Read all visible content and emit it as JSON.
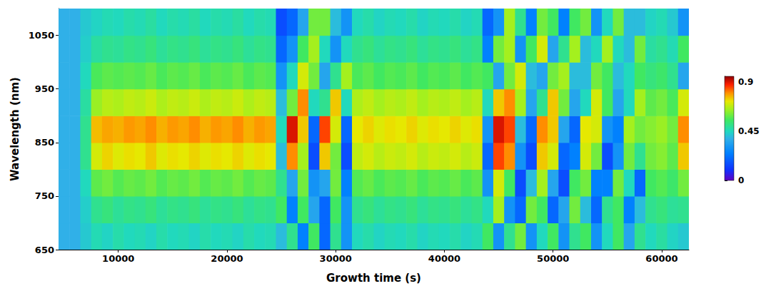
{
  "chart_data": {
    "type": "heatmap",
    "xlabel": "Growth time (s)",
    "ylabel": "Wavelength (nm)",
    "xlim": [
      4500,
      62500
    ],
    "ylim": [
      650,
      1100
    ],
    "xticks": [
      10000,
      20000,
      30000,
      40000,
      50000,
      60000
    ],
    "yticks": [
      650,
      750,
      850,
      950,
      1050
    ],
    "x": [
      5000,
      6000,
      7000,
      8000,
      9000,
      10000,
      11000,
      12000,
      13000,
      14000,
      15000,
      16000,
      17000,
      18000,
      19000,
      20000,
      21000,
      22000,
      23000,
      24000,
      25000,
      26000,
      27000,
      28000,
      29000,
      30000,
      31000,
      32000,
      33000,
      34000,
      35000,
      36000,
      37000,
      38000,
      39000,
      40000,
      41000,
      42000,
      43000,
      44000,
      45000,
      46000,
      47000,
      48000,
      49000,
      50000,
      51000,
      52000,
      53000,
      54000,
      55000,
      56000,
      57000,
      58000,
      59000,
      60000,
      61000,
      62000
    ],
    "y": [
      675,
      725,
      775,
      825,
      875,
      925,
      975,
      1025,
      1075
    ],
    "z": [
      [
        0.38,
        0.38,
        0.42,
        0.46,
        0.44,
        0.47,
        0.45,
        0.46,
        0.44,
        0.47,
        0.45,
        0.46,
        0.44,
        0.47,
        0.45,
        0.46,
        0.44,
        0.47,
        0.45,
        0.46,
        0.4,
        0.5,
        0.25,
        0.55,
        0.2,
        0.5,
        0.3,
        0.45,
        0.47,
        0.44,
        0.46,
        0.45,
        0.47,
        0.44,
        0.46,
        0.45,
        0.47,
        0.44,
        0.46,
        0.55,
        0.3,
        0.5,
        0.6,
        0.3,
        0.45,
        0.55,
        0.3,
        0.5,
        0.55,
        0.3,
        0.45,
        0.55,
        0.35,
        0.5,
        0.45,
        0.48,
        0.44,
        0.42
      ],
      [
        0.38,
        0.38,
        0.43,
        0.5,
        0.52,
        0.49,
        0.51,
        0.5,
        0.52,
        0.49,
        0.51,
        0.5,
        0.52,
        0.49,
        0.51,
        0.5,
        0.52,
        0.49,
        0.51,
        0.5,
        0.55,
        0.25,
        0.55,
        0.35,
        0.2,
        0.55,
        0.3,
        0.5,
        0.52,
        0.49,
        0.51,
        0.5,
        0.52,
        0.49,
        0.51,
        0.5,
        0.52,
        0.49,
        0.51,
        0.45,
        0.65,
        0.3,
        0.2,
        0.6,
        0.55,
        0.2,
        0.35,
        0.6,
        0.4,
        0.2,
        0.5,
        0.55,
        0.25,
        0.4,
        0.5,
        0.52,
        0.49,
        0.5
      ],
      [
        0.38,
        0.38,
        0.45,
        0.58,
        0.6,
        0.57,
        0.59,
        0.58,
        0.6,
        0.57,
        0.59,
        0.58,
        0.6,
        0.57,
        0.59,
        0.58,
        0.6,
        0.57,
        0.59,
        0.58,
        0.5,
        0.35,
        0.6,
        0.3,
        0.35,
        0.6,
        0.25,
        0.57,
        0.59,
        0.56,
        0.58,
        0.57,
        0.59,
        0.56,
        0.58,
        0.57,
        0.59,
        0.56,
        0.58,
        0.3,
        0.7,
        0.55,
        0.15,
        0.4,
        0.65,
        0.35,
        0.15,
        0.55,
        0.6,
        0.25,
        0.25,
        0.6,
        0.45,
        0.2,
        0.55,
        0.57,
        0.54,
        0.6
      ],
      [
        0.38,
        0.38,
        0.5,
        0.7,
        0.74,
        0.71,
        0.73,
        0.72,
        0.75,
        0.71,
        0.73,
        0.72,
        0.74,
        0.71,
        0.73,
        0.72,
        0.74,
        0.71,
        0.73,
        0.72,
        0.4,
        0.8,
        0.65,
        0.15,
        0.75,
        0.6,
        0.15,
        0.68,
        0.7,
        0.67,
        0.69,
        0.68,
        0.7,
        0.67,
        0.69,
        0.68,
        0.7,
        0.67,
        0.69,
        0.2,
        0.85,
        0.8,
        0.3,
        0.15,
        0.75,
        0.7,
        0.2,
        0.25,
        0.7,
        0.6,
        0.15,
        0.3,
        0.6,
        0.5,
        0.6,
        0.62,
        0.58,
        0.75
      ],
      [
        0.38,
        0.38,
        0.5,
        0.76,
        0.78,
        0.77,
        0.79,
        0.78,
        0.8,
        0.77,
        0.79,
        0.78,
        0.8,
        0.77,
        0.79,
        0.78,
        0.8,
        0.77,
        0.79,
        0.78,
        0.45,
        0.9,
        0.75,
        0.2,
        0.85,
        0.7,
        0.2,
        0.72,
        0.74,
        0.71,
        0.73,
        0.72,
        0.74,
        0.71,
        0.73,
        0.72,
        0.74,
        0.71,
        0.73,
        0.3,
        0.9,
        0.85,
        0.4,
        0.2,
        0.8,
        0.75,
        0.35,
        0.2,
        0.72,
        0.7,
        0.3,
        0.25,
        0.65,
        0.6,
        0.62,
        0.64,
        0.6,
        0.8
      ],
      [
        0.38,
        0.38,
        0.48,
        0.64,
        0.67,
        0.66,
        0.68,
        0.67,
        0.69,
        0.66,
        0.68,
        0.67,
        0.69,
        0.66,
        0.68,
        0.67,
        0.69,
        0.66,
        0.68,
        0.67,
        0.4,
        0.6,
        0.8,
        0.45,
        0.5,
        0.75,
        0.45,
        0.66,
        0.68,
        0.65,
        0.67,
        0.66,
        0.68,
        0.65,
        0.67,
        0.66,
        0.68,
        0.65,
        0.67,
        0.45,
        0.75,
        0.8,
        0.65,
        0.35,
        0.5,
        0.75,
        0.6,
        0.35,
        0.45,
        0.7,
        0.55,
        0.35,
        0.45,
        0.65,
        0.58,
        0.6,
        0.56,
        0.7
      ],
      [
        0.38,
        0.38,
        0.45,
        0.56,
        0.58,
        0.57,
        0.58,
        0.57,
        0.59,
        0.56,
        0.58,
        0.57,
        0.59,
        0.56,
        0.58,
        0.57,
        0.59,
        0.56,
        0.58,
        0.57,
        0.3,
        0.45,
        0.7,
        0.6,
        0.35,
        0.5,
        0.65,
        0.56,
        0.58,
        0.55,
        0.57,
        0.56,
        0.58,
        0.55,
        0.57,
        0.56,
        0.58,
        0.55,
        0.57,
        0.55,
        0.35,
        0.6,
        0.7,
        0.4,
        0.35,
        0.6,
        0.65,
        0.4,
        0.4,
        0.6,
        0.55,
        0.4,
        0.45,
        0.55,
        0.52,
        0.54,
        0.5,
        0.35
      ],
      [
        0.38,
        0.38,
        0.43,
        0.48,
        0.5,
        0.49,
        0.51,
        0.5,
        0.52,
        0.49,
        0.51,
        0.5,
        0.52,
        0.49,
        0.51,
        0.5,
        0.52,
        0.49,
        0.51,
        0.5,
        0.2,
        0.3,
        0.55,
        0.65,
        0.45,
        0.3,
        0.45,
        0.5,
        0.52,
        0.49,
        0.51,
        0.5,
        0.52,
        0.49,
        0.51,
        0.5,
        0.52,
        0.49,
        0.51,
        0.25,
        0.6,
        0.65,
        0.3,
        0.55,
        0.7,
        0.35,
        0.5,
        0.65,
        0.4,
        0.45,
        0.65,
        0.45,
        0.4,
        0.6,
        0.48,
        0.5,
        0.46,
        0.55
      ],
      [
        0.38,
        0.38,
        0.42,
        0.44,
        0.46,
        0.45,
        0.47,
        0.46,
        0.48,
        0.45,
        0.47,
        0.46,
        0.48,
        0.45,
        0.47,
        0.46,
        0.48,
        0.45,
        0.47,
        0.46,
        0.15,
        0.2,
        0.35,
        0.6,
        0.6,
        0.4,
        0.3,
        0.45,
        0.47,
        0.44,
        0.46,
        0.45,
        0.47,
        0.44,
        0.46,
        0.45,
        0.47,
        0.44,
        0.46,
        0.2,
        0.3,
        0.65,
        0.5,
        0.25,
        0.6,
        0.55,
        0.25,
        0.55,
        0.6,
        0.3,
        0.45,
        0.6,
        0.4,
        0.4,
        0.44,
        0.46,
        0.42,
        0.3
      ]
    ],
    "colorbar": {
      "range": [
        0,
        0.95
      ],
      "ticks": [
        0,
        0.45,
        0.9
      ]
    }
  }
}
